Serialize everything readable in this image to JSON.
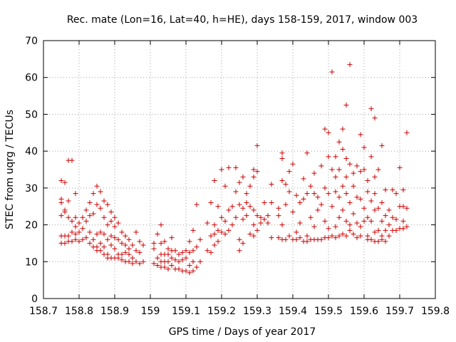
{
  "chart_data": {
    "type": "scatter",
    "title": "Rec. mate (Lon=16, Lat=40, h=HE), days 158-159, 2017, window 003",
    "xlabel": "GPS time / Days of year 2017",
    "ylabel": "STEC from uqrg / TECUs",
    "xlim": [
      158.7,
      159.8
    ],
    "ylim": [
      0,
      70
    ],
    "xticks": [
      "158.7",
      "158.8",
      "158.9",
      "159",
      "159.1",
      "159.2",
      "159.3",
      "159.4",
      "159.5",
      "159.6",
      "159.7",
      "159.8"
    ],
    "yticks": [
      "0",
      "10",
      "20",
      "30",
      "40",
      "50",
      "60",
      "70"
    ],
    "grid": true,
    "marker": "plus",
    "color": "#cc0000",
    "points": [
      [
        158.75,
        32.0
      ],
      [
        158.75,
        27.0
      ],
      [
        158.75,
        26.0
      ],
      [
        158.75,
        22.5
      ],
      [
        158.75,
        17.0
      ],
      [
        158.75,
        15.0
      ],
      [
        158.76,
        31.5
      ],
      [
        158.76,
        24.0
      ],
      [
        158.76,
        23.5
      ],
      [
        158.76,
        17.0
      ],
      [
        158.76,
        15.0
      ],
      [
        158.77,
        37.5
      ],
      [
        158.77,
        26.5
      ],
      [
        158.77,
        22.0
      ],
      [
        158.77,
        17.0
      ],
      [
        158.77,
        15.5
      ],
      [
        158.78,
        37.5
      ],
      [
        158.78,
        21.0
      ],
      [
        158.78,
        18.0
      ],
      [
        158.78,
        15.5
      ],
      [
        158.79,
        28.5
      ],
      [
        158.79,
        22.0
      ],
      [
        158.79,
        19.5
      ],
      [
        158.79,
        17.5
      ],
      [
        158.79,
        16.0
      ],
      [
        158.8,
        20.5
      ],
      [
        158.8,
        18.0
      ],
      [
        158.8,
        15.5
      ],
      [
        158.81,
        22.0
      ],
      [
        158.81,
        19.0
      ],
      [
        158.81,
        16.0
      ],
      [
        158.82,
        24.0
      ],
      [
        158.82,
        21.0
      ],
      [
        158.82,
        16.5
      ],
      [
        158.83,
        26.0
      ],
      [
        158.83,
        22.5
      ],
      [
        158.83,
        18.0
      ],
      [
        158.83,
        15.0
      ],
      [
        158.84,
        28.5
      ],
      [
        158.84,
        23.0
      ],
      [
        158.84,
        16.0
      ],
      [
        158.84,
        14.0
      ],
      [
        158.85,
        30.5
      ],
      [
        158.85,
        25.5
      ],
      [
        158.85,
        17.5
      ],
      [
        158.85,
        14.0
      ],
      [
        158.85,
        13.0
      ],
      [
        158.86,
        29.0
      ],
      [
        158.86,
        24.5
      ],
      [
        158.86,
        18.0
      ],
      [
        158.86,
        15.0
      ],
      [
        158.86,
        13.0
      ],
      [
        158.87,
        26.5
      ],
      [
        158.87,
        22.0
      ],
      [
        158.87,
        17.5
      ],
      [
        158.87,
        14.0
      ],
      [
        158.87,
        12.0
      ],
      [
        158.88,
        25.5
      ],
      [
        158.88,
        20.0
      ],
      [
        158.88,
        16.0
      ],
      [
        158.88,
        12.0
      ],
      [
        158.88,
        11.0
      ],
      [
        158.89,
        23.5
      ],
      [
        158.89,
        21.0
      ],
      [
        158.89,
        17.0
      ],
      [
        158.89,
        14.5
      ],
      [
        158.89,
        11.0
      ],
      [
        158.9,
        22.0
      ],
      [
        158.9,
        19.5
      ],
      [
        158.9,
        16.5
      ],
      [
        158.9,
        13.5
      ],
      [
        158.9,
        11.0
      ],
      [
        158.91,
        20.5
      ],
      [
        158.91,
        16.0
      ],
      [
        158.91,
        12.0
      ],
      [
        158.91,
        11.0
      ],
      [
        158.92,
        18.0
      ],
      [
        158.92,
        15.0
      ],
      [
        158.92,
        12.0
      ],
      [
        158.92,
        10.5
      ],
      [
        158.93,
        17.0
      ],
      [
        158.93,
        14.5
      ],
      [
        158.93,
        12.5
      ],
      [
        158.93,
        10.0
      ],
      [
        158.94,
        16.0
      ],
      [
        158.94,
        13.5
      ],
      [
        158.94,
        12.0
      ],
      [
        158.94,
        10.0
      ],
      [
        158.95,
        14.5
      ],
      [
        158.95,
        11.0
      ],
      [
        158.95,
        9.5
      ],
      [
        158.96,
        18.0
      ],
      [
        158.96,
        13.0
      ],
      [
        158.96,
        10.0
      ],
      [
        158.97,
        15.5
      ],
      [
        158.97,
        12.5
      ],
      [
        158.97,
        9.5
      ],
      [
        158.98,
        14.5
      ],
      [
        158.98,
        10.0
      ],
      [
        159.01,
        15.0
      ],
      [
        159.01,
        13.5
      ],
      [
        159.01,
        9.5
      ],
      [
        159.02,
        17.5
      ],
      [
        159.02,
        11.0
      ],
      [
        159.02,
        9.0
      ],
      [
        159.03,
        20.0
      ],
      [
        159.03,
        15.0
      ],
      [
        159.03,
        12.0
      ],
      [
        159.03,
        10.0
      ],
      [
        159.03,
        8.5
      ],
      [
        159.04,
        15.5
      ],
      [
        159.04,
        12.0
      ],
      [
        159.04,
        10.0
      ],
      [
        159.04,
        8.5
      ],
      [
        159.05,
        13.5
      ],
      [
        159.05,
        12.0
      ],
      [
        159.05,
        10.0
      ],
      [
        159.05,
        8.0
      ],
      [
        159.06,
        16.5
      ],
      [
        159.06,
        13.0
      ],
      [
        159.06,
        11.0
      ],
      [
        159.06,
        9.0
      ],
      [
        159.07,
        13.0
      ],
      [
        159.07,
        10.5
      ],
      [
        159.07,
        8.0
      ],
      [
        159.08,
        12.0
      ],
      [
        159.08,
        10.0
      ],
      [
        159.08,
        8.0
      ],
      [
        159.09,
        12.5
      ],
      [
        159.09,
        10.5
      ],
      [
        159.09,
        7.5
      ],
      [
        159.1,
        13.0
      ],
      [
        159.1,
        11.0
      ],
      [
        159.1,
        7.5
      ],
      [
        159.11,
        15.5
      ],
      [
        159.11,
        12.5
      ],
      [
        159.11,
        9.0
      ],
      [
        159.11,
        7.0
      ],
      [
        159.12,
        18.5
      ],
      [
        159.12,
        13.0
      ],
      [
        159.12,
        10.0
      ],
      [
        159.12,
        7.5
      ],
      [
        159.13,
        25.5
      ],
      [
        159.13,
        14.0
      ],
      [
        159.13,
        8.5
      ],
      [
        159.14,
        16.0
      ],
      [
        159.14,
        10.0
      ],
      [
        159.16,
        20.5
      ],
      [
        159.16,
        13.0
      ],
      [
        159.17,
        26.0
      ],
      [
        159.17,
        17.0
      ],
      [
        159.17,
        12.5
      ],
      [
        159.18,
        32.0
      ],
      [
        159.18,
        20.0
      ],
      [
        159.18,
        17.5
      ],
      [
        159.18,
        14.5
      ],
      [
        159.19,
        25.0
      ],
      [
        159.19,
        18.5
      ],
      [
        159.19,
        15.5
      ],
      [
        159.2,
        35.0
      ],
      [
        159.2,
        22.0
      ],
      [
        159.2,
        18.0
      ],
      [
        159.21,
        30.5
      ],
      [
        159.21,
        21.0
      ],
      [
        159.21,
        17.5
      ],
      [
        159.22,
        35.5
      ],
      [
        159.22,
        24.0
      ],
      [
        159.22,
        18.5
      ],
      [
        159.23,
        25.0
      ],
      [
        159.23,
        20.0
      ],
      [
        159.24,
        35.5
      ],
      [
        159.24,
        29.0
      ],
      [
        159.24,
        22.0
      ],
      [
        159.25,
        31.5
      ],
      [
        159.25,
        25.5
      ],
      [
        159.25,
        16.0
      ],
      [
        159.25,
        13.0
      ],
      [
        159.26,
        33.0
      ],
      [
        159.26,
        24.5
      ],
      [
        159.26,
        21.5
      ],
      [
        159.26,
        15.0
      ],
      [
        159.27,
        28.5
      ],
      [
        159.27,
        26.0
      ],
      [
        159.27,
        22.5
      ],
      [
        159.28,
        30.5
      ],
      [
        159.28,
        25.0
      ],
      [
        159.28,
        17.5
      ],
      [
        159.29,
        33.0
      ],
      [
        159.29,
        35.0
      ],
      [
        159.29,
        24.0
      ],
      [
        159.29,
        20.0
      ],
      [
        159.29,
        17.0
      ],
      [
        159.3,
        41.5
      ],
      [
        159.3,
        34.5
      ],
      [
        159.3,
        22.5
      ],
      [
        159.3,
        18.5
      ],
      [
        159.31,
        22.0
      ],
      [
        159.31,
        20.5
      ],
      [
        159.32,
        26.0
      ],
      [
        159.32,
        21.5
      ],
      [
        159.33,
        22.5
      ],
      [
        159.33,
        20.5
      ],
      [
        159.34,
        31.0
      ],
      [
        159.34,
        26.0
      ],
      [
        159.34,
        16.5
      ],
      [
        159.36,
        24.5
      ],
      [
        159.36,
        22.5
      ],
      [
        159.36,
        16.5
      ],
      [
        159.37,
        39.5
      ],
      [
        159.37,
        38.0
      ],
      [
        159.37,
        32.0
      ],
      [
        159.37,
        20.0
      ],
      [
        159.37,
        16.0
      ],
      [
        159.38,
        31.0
      ],
      [
        159.38,
        25.5
      ],
      [
        159.38,
        16.0
      ],
      [
        159.39,
        34.5
      ],
      [
        159.39,
        29.0
      ],
      [
        159.39,
        17.0
      ],
      [
        159.4,
        36.5
      ],
      [
        159.4,
        23.5
      ],
      [
        159.4,
        16.0
      ],
      [
        159.41,
        28.0
      ],
      [
        159.41,
        18.0
      ],
      [
        159.41,
        16.0
      ],
      [
        159.42,
        26.0
      ],
      [
        159.42,
        20.5
      ],
      [
        159.42,
        16.5
      ],
      [
        159.43,
        32.5
      ],
      [
        159.43,
        27.0
      ],
      [
        159.43,
        15.5
      ],
      [
        159.44,
        39.5
      ],
      [
        159.44,
        28.5
      ],
      [
        159.44,
        17.0
      ],
      [
        159.44,
        15.5
      ],
      [
        159.45,
        30.5
      ],
      [
        159.45,
        22.0
      ],
      [
        159.45,
        16.0
      ],
      [
        159.46,
        34.0
      ],
      [
        159.46,
        28.5
      ],
      [
        159.46,
        19.5
      ],
      [
        159.46,
        16.0
      ],
      [
        159.47,
        27.5
      ],
      [
        159.47,
        24.0
      ],
      [
        159.47,
        16.0
      ],
      [
        159.48,
        36.0
      ],
      [
        159.48,
        25.5
      ],
      [
        159.48,
        16.0
      ],
      [
        159.49,
        46.0
      ],
      [
        159.49,
        30.0
      ],
      [
        159.49,
        21.0
      ],
      [
        159.49,
        16.5
      ],
      [
        159.5,
        45.0
      ],
      [
        159.5,
        38.5
      ],
      [
        159.5,
        28.5
      ],
      [
        159.5,
        19.0
      ],
      [
        159.5,
        16.5
      ],
      [
        159.51,
        61.5
      ],
      [
        159.51,
        35.0
      ],
      [
        159.51,
        25.0
      ],
      [
        159.51,
        17.0
      ],
      [
        159.52,
        38.5
      ],
      [
        159.52,
        33.0
      ],
      [
        159.52,
        29.0
      ],
      [
        159.52,
        19.5
      ],
      [
        159.52,
        16.5
      ],
      [
        159.53,
        42.5
      ],
      [
        159.53,
        35.0
      ],
      [
        159.53,
        27.5
      ],
      [
        159.53,
        22.0
      ],
      [
        159.53,
        17.0
      ],
      [
        159.54,
        46.0
      ],
      [
        159.54,
        40.5
      ],
      [
        159.54,
        30.5
      ],
      [
        159.54,
        24.0
      ],
      [
        159.54,
        17.5
      ],
      [
        159.55,
        52.5
      ],
      [
        159.55,
        38.0
      ],
      [
        159.55,
        33.0
      ],
      [
        159.55,
        28.5
      ],
      [
        159.55,
        21.0
      ],
      [
        159.55,
        17.0
      ],
      [
        159.56,
        63.5
      ],
      [
        159.56,
        36.5
      ],
      [
        159.56,
        26.0
      ],
      [
        159.56,
        20.0
      ],
      [
        159.56,
        18.5
      ],
      [
        159.57,
        34.0
      ],
      [
        159.57,
        30.5
      ],
      [
        159.57,
        23.0
      ],
      [
        159.57,
        17.5
      ],
      [
        159.58,
        36.0
      ],
      [
        159.58,
        27.5
      ],
      [
        159.58,
        20.5
      ],
      [
        159.58,
        16.5
      ],
      [
        159.59,
        44.5
      ],
      [
        159.59,
        34.5
      ],
      [
        159.59,
        27.0
      ],
      [
        159.59,
        19.5
      ],
      [
        159.59,
        17.0
      ],
      [
        159.6,
        41.0
      ],
      [
        159.6,
        35.0
      ],
      [
        159.6,
        24.5
      ],
      [
        159.6,
        21.0
      ],
      [
        159.61,
        32.0
      ],
      [
        159.61,
        29.0
      ],
      [
        159.61,
        22.0
      ],
      [
        159.61,
        17.0
      ],
      [
        159.61,
        16.0
      ],
      [
        159.62,
        51.5
      ],
      [
        159.62,
        38.5
      ],
      [
        159.62,
        26.5
      ],
      [
        159.62,
        21.0
      ],
      [
        159.62,
        16.0
      ],
      [
        159.63,
        49.0
      ],
      [
        159.63,
        33.0
      ],
      [
        159.63,
        28.5
      ],
      [
        159.63,
        24.0
      ],
      [
        159.63,
        18.0
      ],
      [
        159.63,
        15.5
      ],
      [
        159.64,
        35.0
      ],
      [
        159.64,
        24.5
      ],
      [
        159.64,
        18.5
      ],
      [
        159.64,
        15.5
      ],
      [
        159.65,
        41.5
      ],
      [
        159.65,
        26.0
      ],
      [
        159.65,
        21.0
      ],
      [
        159.65,
        17.0
      ],
      [
        159.65,
        16.0
      ],
      [
        159.66,
        29.5
      ],
      [
        159.66,
        22.5
      ],
      [
        159.66,
        18.5
      ],
      [
        159.66,
        15.5
      ],
      [
        159.67,
        24.0
      ],
      [
        159.67,
        20.0
      ],
      [
        159.67,
        17.0
      ],
      [
        159.68,
        29.5
      ],
      [
        159.68,
        22.0
      ],
      [
        159.68,
        18.5
      ],
      [
        159.69,
        28.5
      ],
      [
        159.69,
        21.5
      ],
      [
        159.69,
        18.5
      ],
      [
        159.7,
        35.5
      ],
      [
        159.7,
        25.0
      ],
      [
        159.7,
        19.0
      ],
      [
        159.71,
        29.5
      ],
      [
        159.71,
        25.0
      ],
      [
        159.71,
        21.0
      ],
      [
        159.71,
        19.0
      ],
      [
        159.72,
        45.0
      ],
      [
        159.72,
        24.5
      ],
      [
        159.72,
        19.5
      ]
    ]
  }
}
